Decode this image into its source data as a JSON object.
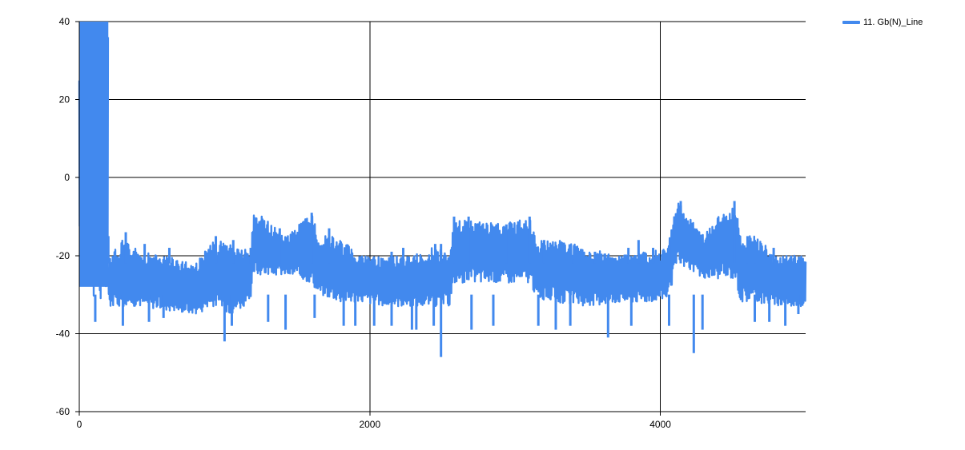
{
  "chart_data": {
    "type": "line",
    "title": "",
    "xlabel": "",
    "ylabel": "",
    "xlim": [
      0,
      5000
    ],
    "ylim": [
      -60,
      40
    ],
    "x_ticks": [
      0,
      2000,
      4000
    ],
    "y_ticks": [
      40,
      20,
      0,
      -20,
      -40,
      -60
    ],
    "grid": true,
    "legend_position": "top-right",
    "series": [
      {
        "name": "11. Gb(N)_Line",
        "color": "#4289ee",
        "bands": [
          {
            "x": [
              0,
              200
            ],
            "upper": [
              40,
              40
            ],
            "lower": [
              -28,
              -34
            ]
          },
          {
            "x": [
              200,
              300,
              420,
              600,
              800,
              930,
              1050,
              1180,
              1200,
              1230,
              1420,
              1600,
              1650,
              1740,
              1800,
              1950,
              2100,
              2300,
              2420,
              2550,
              2580,
              2620,
              2700,
              2920,
              3100,
              3150,
              3300,
              3500,
              3700,
              3900,
              4050,
              4100,
              4120,
              4300,
              4400,
              4520,
              4550,
              4650,
              4800,
              5000
            ],
            "upper": [
              -20,
              -16,
              -19,
              -20,
              -22,
              -16,
              -17,
              -19,
              -9,
              -9,
              -15,
              -9,
              -15,
              -15,
              -16,
              -20,
              -20,
              -20,
              -18,
              -18,
              -11,
              -11,
              -11,
              -12,
              -10,
              -16,
              -16,
              -18,
              -20,
              -19,
              -18,
              -9,
              -6,
              -15,
              -10,
              -6,
              -15,
              -15,
              -20,
              -20
            ],
            "lower": [
              -33,
              -33,
              -33,
              -34,
              -35,
              -33,
              -35,
              -32,
              -25,
              -25,
              -25,
              -27,
              -30,
              -31,
              -32,
              -32,
              -33,
              -33,
              -33,
              -33,
              -27,
              -27,
              -27,
              -27,
              -27,
              -31,
              -32,
              -33,
              -32,
              -32,
              -31,
              -25,
              -22,
              -26,
              -26,
              -26,
              -32,
              -32,
              -33,
              -33
            ]
          }
        ],
        "spikes_max": [
          [
            200,
            -15
          ],
          [
            320,
            -14
          ],
          [
            450,
            -17
          ],
          [
            550,
            -21
          ],
          [
            620,
            -18
          ],
          [
            940,
            -15
          ],
          [
            1060,
            -16
          ],
          [
            1180,
            -18
          ],
          [
            1380,
            -13
          ],
          [
            1470,
            -14
          ],
          [
            1600,
            -9
          ],
          [
            1720,
            -13
          ],
          [
            1860,
            -22
          ],
          [
            2150,
            -19
          ],
          [
            2230,
            -18
          ],
          [
            2450,
            -17
          ],
          [
            2490,
            -17
          ],
          [
            2580,
            -10
          ],
          [
            2680,
            -10
          ],
          [
            2940,
            -12
          ],
          [
            3100,
            -10
          ],
          [
            3200,
            -16
          ],
          [
            3400,
            -21
          ],
          [
            3550,
            -19
          ],
          [
            3780,
            -18
          ],
          [
            3850,
            -16
          ],
          [
            3950,
            -18
          ],
          [
            4080,
            -16
          ],
          [
            4140,
            -6
          ],
          [
            4510,
            -6
          ],
          [
            4600,
            -15
          ],
          [
            4650,
            -17
          ],
          [
            4780,
            -18
          ],
          [
            4900,
            -20
          ]
        ],
        "spikes_min": [
          [
            110,
            -37
          ],
          [
            300,
            -38
          ],
          [
            480,
            -37
          ],
          [
            580,
            -36
          ],
          [
            1000,
            -42
          ],
          [
            1050,
            -38
          ],
          [
            1300,
            -37
          ],
          [
            1420,
            -39
          ],
          [
            1620,
            -36
          ],
          [
            1820,
            -38
          ],
          [
            1900,
            -38
          ],
          [
            2030,
            -38
          ],
          [
            2150,
            -38
          ],
          [
            2290,
            -39
          ],
          [
            2320,
            -39
          ],
          [
            2440,
            -38
          ],
          [
            2490,
            -46
          ],
          [
            2700,
            -39
          ],
          [
            2850,
            -38
          ],
          [
            3160,
            -38
          ],
          [
            3280,
            -39
          ],
          [
            3380,
            -38
          ],
          [
            3640,
            -41
          ],
          [
            3800,
            -38
          ],
          [
            4060,
            -38
          ],
          [
            4230,
            -45
          ],
          [
            4290,
            -39
          ],
          [
            4650,
            -37
          ],
          [
            4750,
            -37
          ],
          [
            4860,
            -38
          ],
          [
            4950,
            -35
          ]
        ]
      }
    ]
  },
  "legend": [
    {
      "label": "11. Gb(N)_Line",
      "color": "#4289ee"
    }
  ]
}
